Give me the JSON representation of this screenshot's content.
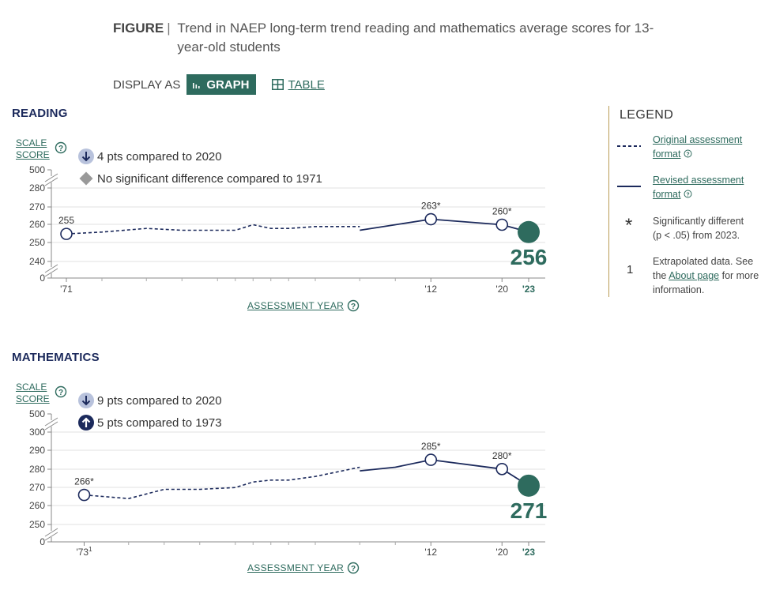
{
  "figure": {
    "lead": "FIGURE",
    "separator": "|",
    "title": "Trend in NAEP long-term trend reading and mathematics average scores for 13-year-old students"
  },
  "display": {
    "label": "DISPLAY AS",
    "graph_label": "GRAPH",
    "table_label": "TABLE"
  },
  "legend": {
    "title": "LEGEND",
    "original_label": "Original assessment format",
    "revised_label": "Revised assessment format",
    "sig_symbol": "*",
    "sig_text_a": "Significantly different",
    "sig_text_b": "(p < .05) from 2023.",
    "extrap_symbol": "1",
    "extrap_text_a": "Extrapolated data. See the",
    "extrap_link": "About page",
    "extrap_text_b": "for more information."
  },
  "colors": {
    "navy": "#1c2a5c",
    "accent": "#2e6b5e",
    "gold": "#b99c55",
    "change_bg": "#b8c2dc"
  },
  "chart_data": [
    {
      "type": "line",
      "subject": "READING",
      "ylabel": "SCALE SCORE",
      "xlabel": "ASSESSMENT YEAR",
      "yticks": [
        "500",
        "280",
        "270",
        "260",
        "250",
        "240",
        "0"
      ],
      "xticks": [
        {
          "year": 1971,
          "label": "'71"
        },
        {
          "year": 2012,
          "label": "'12"
        },
        {
          "year": 2020,
          "label": "'20"
        },
        {
          "year": 2023,
          "label": "'23"
        }
      ],
      "x_range": [
        1971,
        2023
      ],
      "minor_tick_years": [
        1975,
        1980,
        1984,
        1988,
        1990,
        1992,
        1994,
        1996,
        1999,
        2004,
        2008
      ],
      "change_2020": "4 pts compared to 2020",
      "change_first": "No significant difference compared to 1971",
      "change_2020_icon": "arrow-down-icon",
      "change_first_icon": "diamond-icon",
      "series": [
        {
          "name": "Original assessment format",
          "x": [
            1971,
            1975,
            1980,
            1984,
            1988,
            1990,
            1992,
            1994,
            1996,
            1999,
            2004
          ],
          "y": [
            255,
            256,
            258,
            257,
            257,
            257,
            260,
            258,
            258,
            259,
            259
          ]
        },
        {
          "name": "Revised assessment format",
          "x": [
            2004,
            2008,
            2012,
            2020,
            2023
          ],
          "y": [
            257,
            260,
            263,
            260,
            256
          ]
        }
      ],
      "point_labels": [
        {
          "year": 1971,
          "value": 255,
          "label": "255"
        },
        {
          "year": 2012,
          "value": 263,
          "label": "263*"
        },
        {
          "year": 2020,
          "value": 260,
          "label": "260*"
        }
      ],
      "final": {
        "year": 2023,
        "value": 256,
        "label": "256"
      }
    },
    {
      "type": "line",
      "subject": "MATHEMATICS",
      "ylabel": "SCALE SCORE",
      "xlabel": "ASSESSMENT YEAR",
      "yticks": [
        "500",
        "300",
        "290",
        "280",
        "270",
        "260",
        "250",
        "0"
      ],
      "xticks": [
        {
          "year": 1973,
          "label": "'73",
          "sup": "1"
        },
        {
          "year": 2012,
          "label": "'12"
        },
        {
          "year": 2020,
          "label": "'20"
        },
        {
          "year": 2023,
          "label": "'23"
        }
      ],
      "x_range": [
        1971,
        2023
      ],
      "minor_tick_years": [
        1978,
        1982,
        1986,
        1990,
        1992,
        1994,
        1996,
        1999,
        2004,
        2008
      ],
      "change_2020": "9 pts compared to 2020",
      "change_first": "5 pts compared to 1973",
      "change_2020_icon": "arrow-down-icon",
      "change_first_icon": "arrow-up-icon",
      "series": [
        {
          "name": "Original assessment format",
          "x": [
            1973,
            1978,
            1982,
            1986,
            1990,
            1992,
            1994,
            1996,
            1999,
            2004
          ],
          "y": [
            266,
            264,
            269,
            269,
            270,
            273,
            274,
            274,
            276,
            281
          ]
        },
        {
          "name": "Revised assessment format",
          "x": [
            2004,
            2008,
            2012,
            2020,
            2023
          ],
          "y": [
            279,
            281,
            285,
            280,
            271
          ]
        }
      ],
      "point_labels": [
        {
          "year": 1973,
          "value": 266,
          "label": "266*"
        },
        {
          "year": 2012,
          "value": 285,
          "label": "285*"
        },
        {
          "year": 2020,
          "value": 280,
          "label": "280*"
        }
      ],
      "final": {
        "year": 2023,
        "value": 271,
        "label": "271"
      }
    }
  ]
}
